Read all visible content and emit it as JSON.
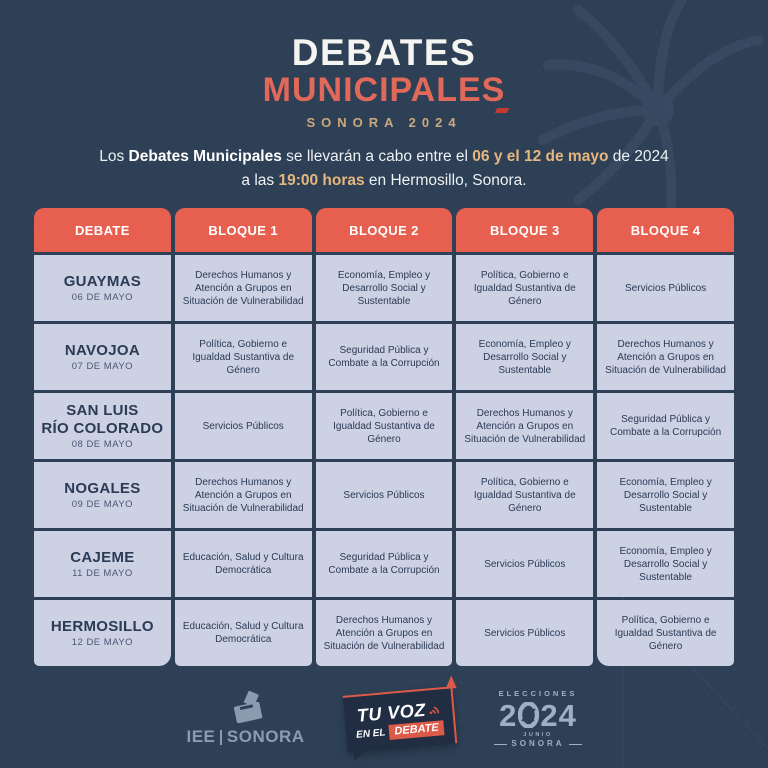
{
  "colors": {
    "background": "#2d4056",
    "header_red": "#e7604f",
    "cell_lavender": "#ccd1e3",
    "cell_text_navy": "#2b3a55",
    "title_coral": "#e0695a",
    "gold": "#cda87c",
    "footer_steel": "#8b9cb1"
  },
  "title": {
    "line1": "DEBATES",
    "line2": "MUNICIPALES",
    "tagline": "SONORA 2024"
  },
  "intro": {
    "pre": "Los ",
    "bold1": "Debates Municipales",
    "mid1": " se llevarán a cabo entre el ",
    "highlight1": "06 y el 12 de mayo",
    "mid2": " de 2024",
    "line2_pre": "a las ",
    "highlight2": "19:00 horas",
    "line2_post": " en Hermosillo, Sonora."
  },
  "table": {
    "headers": [
      "DEBATE",
      "BLOQUE 1",
      "BLOQUE 2",
      "BLOQUE 3",
      "BLOQUE 4"
    ],
    "rows": [
      {
        "city": "GUAYMAS",
        "date": "06 DE MAYO",
        "blocks": [
          "Derechos Humanos y Atención a Grupos en Situación de Vulnerabilidad",
          "Economía, Empleo y Desarrollo Social y Sustentable",
          "Política, Gobierno e Igualdad Sustantiva de Género",
          "Servicios Públicos"
        ]
      },
      {
        "city": "NAVOJOA",
        "date": "07 DE MAYO",
        "blocks": [
          "Política, Gobierno e Igualdad Sustantiva de Género",
          "Seguridad Pública y Combate a la Corrupción",
          "Economía, Empleo y Desarrollo Social y Sustentable",
          "Derechos Humanos y Atención a Grupos en Situación de Vulnerabilidad"
        ]
      },
      {
        "city": "SAN LUIS\nRÍO COLORADO",
        "date": "08 DE MAYO",
        "blocks": [
          "Servicios Públicos",
          "Política, Gobierno e Igualdad Sustantiva de Género",
          "Derechos Humanos y Atención a Grupos en Situación de Vulnerabilidad",
          "Seguridad Pública y Combate a la Corrupción"
        ]
      },
      {
        "city": "NOGALES",
        "date": "09 DE MAYO",
        "blocks": [
          "Derechos Humanos y Atención a Grupos en Situación de Vulnerabilidad",
          "Servicios Públicos",
          "Política, Gobierno e Igualdad Sustantiva de Género",
          "Economía, Empleo y Desarrollo Social y Sustentable"
        ]
      },
      {
        "city": "CAJEME",
        "date": "11 DE MAYO",
        "blocks": [
          "Educación, Salud y Cultura Democrática",
          "Seguridad Pública y Combate a la Corrupción",
          "Servicios Públicos",
          "Economía, Empleo y Desarrollo Social y Sustentable"
        ]
      },
      {
        "city": "HERMOSILLO",
        "date": "12 DE MAYO",
        "blocks": [
          "Educación, Salud y Cultura Democrática",
          "Derechos Humanos y Atención a Grupos en Situación de Vulnerabilidad",
          "Servicios Públicos",
          "Política, Gobierno e Igualdad Sustantiva de Género"
        ]
      }
    ]
  },
  "footer": {
    "iee": {
      "icon": "ballot-box-icon",
      "text_left": "IEE",
      "text_right": "SONORA"
    },
    "tuvoz": {
      "icon": "sound-waves-icon",
      "line1": "TU VOZ",
      "line2_small": "EN EL",
      "line2_badge": "DEBATE"
    },
    "elecciones": {
      "icon": "iee-emblem-icon",
      "top": "ELECCIONES",
      "year_pre": "2",
      "year_post": "24",
      "small": "JUNIO",
      "bottom": "SONORA"
    }
  }
}
